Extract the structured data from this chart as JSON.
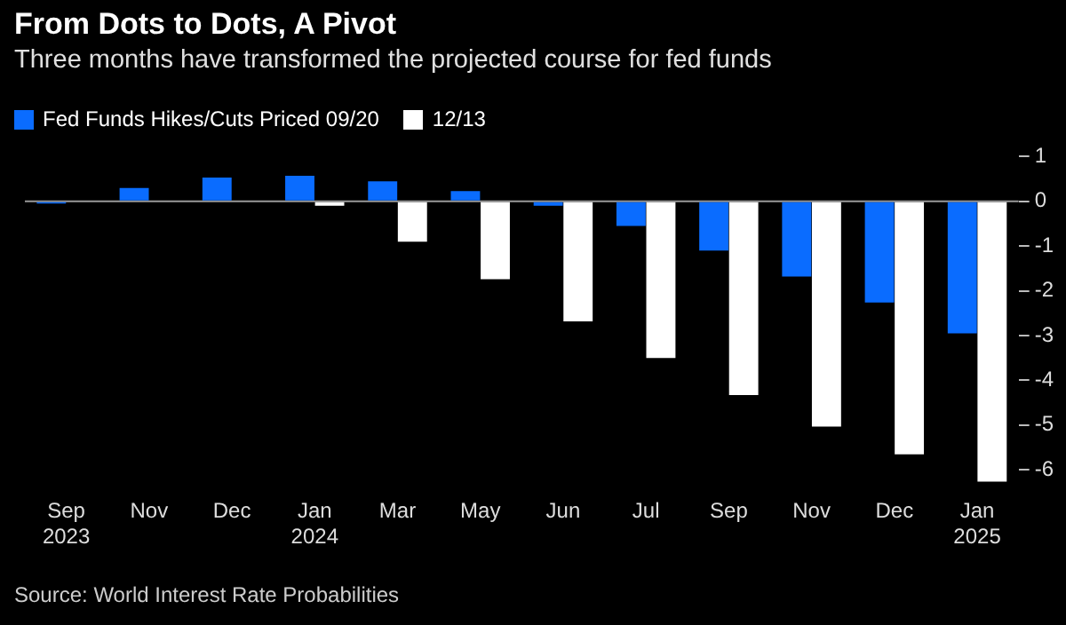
{
  "chart_data": {
    "type": "bar",
    "title": "From Dots to Dots, A Pivot",
    "subtitle": "Three months have transformed the projected course for fed funds",
    "categories": [
      "Sep 2023",
      "Nov",
      "Dec",
      "Jan 2024",
      "Mar",
      "May",
      "Jun",
      "Jul",
      "Sep",
      "Nov",
      "Dec",
      "Jan 2025"
    ],
    "series": [
      {
        "name": "Fed Funds Hikes/Cuts Priced 09/20",
        "color": "#0a6cff",
        "values": [
          -0.05,
          0.3,
          0.53,
          0.57,
          0.45,
          0.23,
          -0.1,
          -0.55,
          -1.1,
          -1.68,
          -2.26,
          -2.95
        ]
      },
      {
        "name": "12/13",
        "color": "#ffffff",
        "values": [
          0,
          0,
          0,
          -0.1,
          -0.9,
          -1.74,
          -2.68,
          -3.5,
          -4.33,
          -5.03,
          -5.65,
          -6.26
        ]
      }
    ],
    "ylim": [
      -6.3,
      1
    ],
    "yticks": [
      1,
      0,
      -1,
      -2,
      -3,
      -4,
      -5,
      -6
    ],
    "grid": false,
    "legend": "top left",
    "ref_lines": [
      {
        "axis": "y",
        "value": 0,
        "color": "#999999"
      }
    ],
    "annotations": [
      "Source: World Interest Rate Probabilities"
    ]
  }
}
